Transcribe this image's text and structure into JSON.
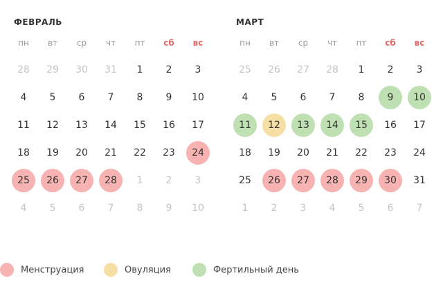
{
  "weekdays": [
    "пн",
    "вт",
    "ср",
    "чт",
    "пт",
    "сб",
    "вс"
  ],
  "weekend_indices": [
    5,
    6
  ],
  "colors": {
    "menstruation": "#f7b2b2",
    "ovulation": "#f6dfa5",
    "fertile": "#bfe0b2",
    "weekend_text": "#e06a6a",
    "other_month_text": "#c4c4c4"
  },
  "months": [
    {
      "title": "ФЕВРАЛЬ",
      "weeks": [
        [
          {
            "d": "28",
            "o": true
          },
          {
            "d": "29",
            "o": true
          },
          {
            "d": "30",
            "o": true
          },
          {
            "d": "31",
            "o": true
          },
          {
            "d": "1"
          },
          {
            "d": "2"
          },
          {
            "d": "3"
          }
        ],
        [
          {
            "d": "4"
          },
          {
            "d": "5"
          },
          {
            "d": "6"
          },
          {
            "d": "7"
          },
          {
            "d": "8"
          },
          {
            "d": "9"
          },
          {
            "d": "10"
          }
        ],
        [
          {
            "d": "11"
          },
          {
            "d": "12"
          },
          {
            "d": "13"
          },
          {
            "d": "14"
          },
          {
            "d": "15"
          },
          {
            "d": "16"
          },
          {
            "d": "17"
          }
        ],
        [
          {
            "d": "18"
          },
          {
            "d": "19"
          },
          {
            "d": "20"
          },
          {
            "d": "21"
          },
          {
            "d": "22"
          },
          {
            "d": "23"
          },
          {
            "d": "24",
            "t": "menstruation"
          }
        ],
        [
          {
            "d": "25",
            "t": "menstruation"
          },
          {
            "d": "26",
            "t": "menstruation"
          },
          {
            "d": "27",
            "t": "menstruation"
          },
          {
            "d": "28",
            "t": "menstruation"
          },
          {
            "d": "1",
            "o": true
          },
          {
            "d": "2",
            "o": true
          },
          {
            "d": "3",
            "o": true
          }
        ],
        [
          {
            "d": "4",
            "o": true
          },
          {
            "d": "5",
            "o": true
          },
          {
            "d": "6",
            "o": true
          },
          {
            "d": "7",
            "o": true
          },
          {
            "d": "8",
            "o": true
          },
          {
            "d": "9",
            "o": true
          },
          {
            "d": "10",
            "o": true
          }
        ]
      ]
    },
    {
      "title": "МАРТ",
      "weeks": [
        [
          {
            "d": "25",
            "o": true
          },
          {
            "d": "26",
            "o": true
          },
          {
            "d": "27",
            "o": true
          },
          {
            "d": "28",
            "o": true
          },
          {
            "d": "1"
          },
          {
            "d": "2"
          },
          {
            "d": "3"
          }
        ],
        [
          {
            "d": "4"
          },
          {
            "d": "5"
          },
          {
            "d": "6"
          },
          {
            "d": "7"
          },
          {
            "d": "8"
          },
          {
            "d": "9",
            "t": "fertile"
          },
          {
            "d": "10",
            "t": "fertile"
          }
        ],
        [
          {
            "d": "11",
            "t": "fertile"
          },
          {
            "d": "12",
            "t": "ovulation"
          },
          {
            "d": "13",
            "t": "fertile"
          },
          {
            "d": "14",
            "t": "fertile"
          },
          {
            "d": "15",
            "t": "fertile"
          },
          {
            "d": "16"
          },
          {
            "d": "17"
          }
        ],
        [
          {
            "d": "18"
          },
          {
            "d": "19"
          },
          {
            "d": "20"
          },
          {
            "d": "21"
          },
          {
            "d": "22"
          },
          {
            "d": "23"
          },
          {
            "d": "24"
          }
        ],
        [
          {
            "d": "25"
          },
          {
            "d": "26",
            "t": "menstruation"
          },
          {
            "d": "27",
            "t": "menstruation"
          },
          {
            "d": "28",
            "t": "menstruation"
          },
          {
            "d": "29",
            "t": "menstruation"
          },
          {
            "d": "30",
            "t": "menstruation"
          },
          {
            "d": "31"
          }
        ],
        [
          {
            "d": "1",
            "o": true
          },
          {
            "d": "2",
            "o": true
          },
          {
            "d": "3",
            "o": true
          },
          {
            "d": "4",
            "o": true
          },
          {
            "d": "5",
            "o": true
          },
          {
            "d": "6",
            "o": true
          },
          {
            "d": "7",
            "o": true
          }
        ]
      ]
    }
  ],
  "legend": [
    {
      "label": "Менструация",
      "type": "menstruation",
      "icon": "menstruation-dot-icon"
    },
    {
      "label": "Овуляция",
      "type": "ovulation",
      "icon": "ovulation-dot-icon"
    },
    {
      "label": "Фертильный день",
      "type": "fertile",
      "icon": "fertile-dot-icon"
    }
  ]
}
